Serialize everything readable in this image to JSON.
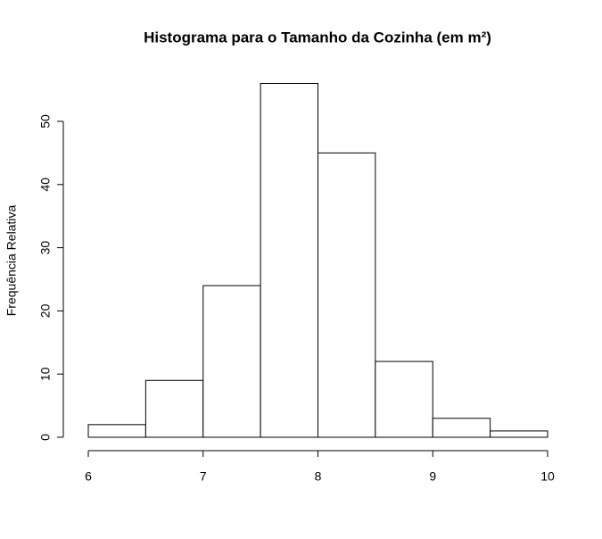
{
  "chart_data": {
    "type": "histogram",
    "title": "Histograma para o Tamanho da Cozinha (em m²)",
    "y_label": "Frequência Relativa",
    "bins": [
      6,
      6.5,
      7,
      7.5,
      8,
      8.5,
      9,
      9.5,
      10
    ],
    "values": [
      2,
      9,
      24,
      56,
      45,
      12,
      3,
      1
    ],
    "color": "#ffffff",
    "edge_color": "#000000",
    "xlim": [
      6,
      10
    ],
    "xticks": [
      6,
      7,
      8,
      9,
      10
    ],
    "ylim": [
      0,
      56
    ],
    "yticks": [
      0,
      10,
      20,
      30,
      40,
      50
    ],
    "grid": false
  }
}
